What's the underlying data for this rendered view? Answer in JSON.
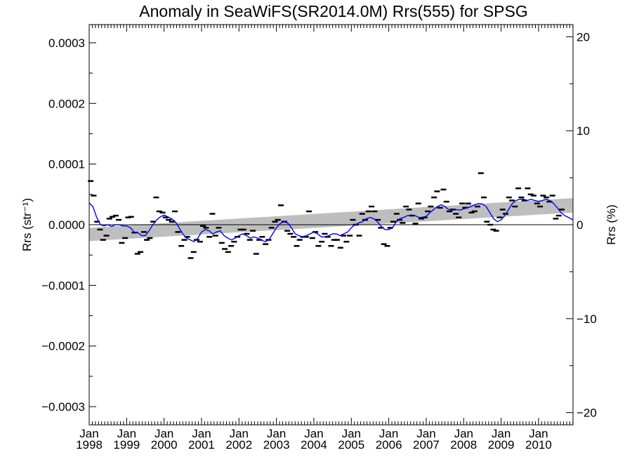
{
  "chart_data": {
    "type": "scatter",
    "title": "Anomaly in SeaWiFS(SR2014.0M) Rrs(555) for SPSG",
    "ylabel_left": "Rrs (str⁻¹)",
    "ylabel_right": "Rrs (%)",
    "xlim": [
      1998.0,
      2010.92
    ],
    "ylim_left": [
      -0.00033,
      0.00033
    ],
    "ylim_right": [
      -21.3,
      21.3
    ],
    "yticks_left": [
      {
        "value": 0.0003,
        "label": "0.0003"
      },
      {
        "value": 0.0002,
        "label": "0.0002"
      },
      {
        "value": 0.0001,
        "label": "0.0001"
      },
      {
        "value": 0.0,
        "label": "0.0000"
      },
      {
        "value": -0.0001,
        "label": "−0.0001"
      },
      {
        "value": -0.0002,
        "label": "−0.0002"
      },
      {
        "value": -0.0003,
        "label": "−0.0003"
      }
    ],
    "yticks_right": [
      {
        "value": 20,
        "label": "20"
      },
      {
        "value": 10,
        "label": "10"
      },
      {
        "value": 0,
        "label": "0"
      },
      {
        "value": -10,
        "label": "−10"
      },
      {
        "value": -20,
        "label": "−20"
      }
    ],
    "xticks": [
      {
        "value": 1998,
        "label1": "Jan",
        "label2": "1998"
      },
      {
        "value": 1999,
        "label1": "Jan",
        "label2": "1999"
      },
      {
        "value": 2000,
        "label1": "Jan",
        "label2": "2000"
      },
      {
        "value": 2001,
        "label1": "Jan",
        "label2": "2001"
      },
      {
        "value": 2002,
        "label1": "Jan",
        "label2": "2002"
      },
      {
        "value": 2003,
        "label1": "Jan",
        "label2": "2003"
      },
      {
        "value": 2004,
        "label1": "Jan",
        "label2": "2004"
      },
      {
        "value": 2005,
        "label1": "Jan",
        "label2": "2005"
      },
      {
        "value": 2006,
        "label1": "Jan",
        "label2": "2006"
      },
      {
        "value": 2007,
        "label1": "Jan",
        "label2": "2007"
      },
      {
        "value": 2008,
        "label1": "Jan",
        "label2": "2008"
      },
      {
        "value": 2009,
        "label1": "Jan",
        "label2": "2009"
      },
      {
        "value": 2010,
        "label1": "Jan",
        "label2": "2010"
      }
    ],
    "monthly_anomaly": [
      [
        1998.04,
        7.2e-05
      ],
      [
        1998.12,
        4.8e-05
      ],
      [
        1998.21,
        5e-06
      ],
      [
        1998.29,
        -8e-06
      ],
      [
        1998.37,
        -2.5e-05
      ],
      [
        1998.46,
        -1.8e-05
      ],
      [
        1998.54,
        1e-05
      ],
      [
        1998.62,
        1.3e-05
      ],
      [
        1998.71,
        1.5e-05
      ],
      [
        1998.79,
        8e-06
      ],
      [
        1998.87,
        -3e-05
      ],
      [
        1998.96,
        -2.2e-05
      ],
      [
        1999.04,
        1.2e-05
      ],
      [
        1999.12,
        1.3e-05
      ],
      [
        1999.21,
        -1.3e-05
      ],
      [
        1999.29,
        -4.8e-05
      ],
      [
        1999.37,
        -4.5e-05
      ],
      [
        1999.46,
        -1.2e-05
      ],
      [
        1999.54,
        -2.5e-05
      ],
      [
        1999.62,
        -2.2e-05
      ],
      [
        1999.71,
        5e-06
      ],
      [
        1999.79,
        4.5e-05
      ],
      [
        1999.87,
        2.2e-05
      ],
      [
        1999.96,
        2e-05
      ],
      [
        2000.04,
        1.2e-05
      ],
      [
        2000.12,
        8e-06
      ],
      [
        2000.21,
        5e-06
      ],
      [
        2000.29,
        2.2e-05
      ],
      [
        2000.37,
        -1.2e-05
      ],
      [
        2000.46,
        -3.5e-05
      ],
      [
        2000.54,
        -2.5e-05
      ],
      [
        2000.62,
        -2e-05
      ],
      [
        2000.71,
        -5.5e-05
      ],
      [
        2000.79,
        -4.5e-05
      ],
      [
        2000.87,
        -2.5e-05
      ],
      [
        2000.96,
        -2.8e-05
      ],
      [
        2001.04,
        -2e-06
      ],
      [
        2001.12,
        -5e-06
      ],
      [
        2001.21,
        -2e-05
      ],
      [
        2001.29,
        1.8e-05
      ],
      [
        2001.37,
        -1.8e-05
      ],
      [
        2001.46,
        -5e-06
      ],
      [
        2001.54,
        -3e-05
      ],
      [
        2001.62,
        -4e-05
      ],
      [
        2001.71,
        -4.5e-05
      ],
      [
        2001.79,
        -3.5e-05
      ],
      [
        2001.87,
        -2.8e-05
      ],
      [
        2001.96,
        -2e-05
      ],
      [
        2002.04,
        -8e-06
      ],
      [
        2002.12,
        -8e-06
      ],
      [
        2002.21,
        -1.5e-05
      ],
      [
        2002.29,
        -2.5e-05
      ],
      [
        2002.37,
        -1e-05
      ],
      [
        2002.46,
        -4.8e-05
      ],
      [
        2002.54,
        -2.5e-05
      ],
      [
        2002.62,
        -2e-05
      ],
      [
        2002.71,
        -3.2e-05
      ],
      [
        2002.79,
        -2.5e-05
      ],
      [
        2002.87,
        -5e-06
      ],
      [
        2002.96,
        5e-06
      ],
      [
        2003.04,
        8e-06
      ],
      [
        2003.12,
        3.2e-05
      ],
      [
        2003.21,
        5e-06
      ],
      [
        2003.29,
        -1e-05
      ],
      [
        2003.37,
        -1.5e-05
      ],
      [
        2003.46,
        -2e-05
      ],
      [
        2003.54,
        -3.5e-05
      ],
      [
        2003.62,
        -2.5e-05
      ],
      [
        2003.71,
        -2e-05
      ],
      [
        2003.79,
        -2e-05
      ],
      [
        2003.87,
        2.2e-05
      ],
      [
        2003.96,
        -2.2e-05
      ],
      [
        2004.04,
        -1.2e-05
      ],
      [
        2004.12,
        -3.5e-05
      ],
      [
        2004.21,
        -2.8e-05
      ],
      [
        2004.29,
        -1.5e-05
      ],
      [
        2004.37,
        -2e-05
      ],
      [
        2004.46,
        -3.5e-05
      ],
      [
        2004.54,
        -2.5e-05
      ],
      [
        2004.62,
        -2.5e-05
      ],
      [
        2004.71,
        -3.8e-05
      ],
      [
        2004.79,
        -1.8e-05
      ],
      [
        2004.87,
        -2.8e-05
      ],
      [
        2004.96,
        -1.8e-05
      ],
      [
        2005.04,
        8e-06
      ],
      [
        2005.12,
        0.0
      ],
      [
        2005.21,
        -1.8e-05
      ],
      [
        2005.29,
        1.8e-05
      ],
      [
        2005.37,
        8e-06
      ],
      [
        2005.46,
        2.2e-05
      ],
      [
        2005.54,
        3e-05
      ],
      [
        2005.62,
        2.2e-05
      ],
      [
        2005.71,
        8e-06
      ],
      [
        2005.79,
        -5e-06
      ],
      [
        2005.87,
        -3.2e-05
      ],
      [
        2005.96,
        -3.5e-05
      ],
      [
        2006.04,
        -5e-06
      ],
      [
        2006.12,
        5e-06
      ],
      [
        2006.21,
        1.8e-05
      ],
      [
        2006.29,
        8e-06
      ],
      [
        2006.37,
        3e-06
      ],
      [
        2006.46,
        3e-05
      ],
      [
        2006.54,
        2.5e-05
      ],
      [
        2006.62,
        1.5e-05
      ],
      [
        2006.71,
        2e-06
      ],
      [
        2006.79,
        3.5e-05
      ],
      [
        2006.87,
        1e-05
      ],
      [
        2006.96,
        1.2e-05
      ],
      [
        2007.04,
        2.2e-05
      ],
      [
        2007.12,
        3e-05
      ],
      [
        2007.21,
        4.5e-05
      ],
      [
        2007.29,
        5.5e-05
      ],
      [
        2007.37,
        2.8e-05
      ],
      [
        2007.46,
        5.8e-05
      ],
      [
        2007.54,
        3.8e-05
      ],
      [
        2007.62,
        2.2e-05
      ],
      [
        2007.71,
        2.5e-05
      ],
      [
        2007.79,
        1.8e-05
      ],
      [
        2007.87,
        1.2e-05
      ],
      [
        2007.96,
        3.5e-05
      ],
      [
        2008.04,
        2.8e-05
      ],
      [
        2008.12,
        3.5e-05
      ],
      [
        2008.21,
        2e-05
      ],
      [
        2008.29,
        2.2e-05
      ],
      [
        2008.37,
        3e-05
      ],
      [
        2008.46,
        8.5e-05
      ],
      [
        2008.54,
        4.5e-05
      ],
      [
        2008.62,
        5e-06
      ],
      [
        2008.71,
        0.0
      ],
      [
        2008.79,
        -8e-06
      ],
      [
        2008.87,
        -1e-05
      ],
      [
        2008.96,
        1.2e-05
      ],
      [
        2009.04,
        2.5e-05
      ],
      [
        2009.12,
        1.8e-05
      ],
      [
        2009.21,
        4.5e-05
      ],
      [
        2009.29,
        4e-05
      ],
      [
        2009.37,
        3e-05
      ],
      [
        2009.46,
        6e-05
      ],
      [
        2009.54,
        4.5e-05
      ],
      [
        2009.62,
        4e-05
      ],
      [
        2009.71,
        6e-05
      ],
      [
        2009.79,
        5e-05
      ],
      [
        2009.87,
        4.8e-05
      ],
      [
        2009.96,
        3.5e-05
      ],
      [
        2010.04,
        3e-05
      ],
      [
        2010.12,
        4.8e-05
      ],
      [
        2010.21,
        4.5e-05
      ],
      [
        2010.29,
        3.8e-05
      ],
      [
        2010.37,
        4.8e-05
      ],
      [
        2010.46,
        1e-05
      ],
      [
        2010.54,
        1.5e-05
      ],
      [
        2010.62,
        2.5e-05
      ]
    ],
    "smoothed_line": [
      [
        1998.0,
        3.6e-05
      ],
      [
        1998.1,
        3e-05
      ],
      [
        1998.2,
        1.2e-05
      ],
      [
        1998.3,
        0.0
      ],
      [
        1998.4,
        -2e-06
      ],
      [
        1998.5,
        0.0
      ],
      [
        1998.6,
        -3e-06
      ],
      [
        1998.7,
        0.0
      ],
      [
        1998.8,
        0.0
      ],
      [
        1998.9,
        -2e-06
      ],
      [
        1999.0,
        -2e-06
      ],
      [
        1999.1,
        -5e-06
      ],
      [
        1999.2,
        -1.2e-05
      ],
      [
        1999.3,
        -1.3e-05
      ],
      [
        1999.4,
        -1.8e-05
      ],
      [
        1999.5,
        -1.8e-05
      ],
      [
        1999.6,
        -1e-05
      ],
      [
        1999.7,
        0.0
      ],
      [
        1999.8,
        8e-06
      ],
      [
        1999.9,
        1.3e-05
      ],
      [
        2000.0,
        1.6e-05
      ],
      [
        2000.1,
        1.3e-05
      ],
      [
        2000.2,
        1e-05
      ],
      [
        2000.3,
        5e-06
      ],
      [
        2000.4,
        -5e-06
      ],
      [
        2000.5,
        -1.5e-05
      ],
      [
        2000.6,
        -2.2e-05
      ],
      [
        2000.7,
        -2.5e-05
      ],
      [
        2000.8,
        -2.8e-05
      ],
      [
        2000.9,
        -2.2e-05
      ],
      [
        2001.0,
        -1.2e-05
      ],
      [
        2001.1,
        -8e-06
      ],
      [
        2001.2,
        -1e-05
      ],
      [
        2001.3,
        -1.5e-05
      ],
      [
        2001.4,
        -1.2e-05
      ],
      [
        2001.5,
        -1e-05
      ],
      [
        2001.6,
        -1.8e-05
      ],
      [
        2001.7,
        -2.2e-05
      ],
      [
        2001.8,
        -2.5e-05
      ],
      [
        2001.9,
        -2.2e-05
      ],
      [
        2002.0,
        -1.8e-05
      ],
      [
        2002.1,
        -1.5e-05
      ],
      [
        2002.2,
        -1.8e-05
      ],
      [
        2002.3,
        -2.2e-05
      ],
      [
        2002.4,
        -2e-05
      ],
      [
        2002.5,
        -2.2e-05
      ],
      [
        2002.6,
        -2.5e-05
      ],
      [
        2002.7,
        -2.8e-05
      ],
      [
        2002.8,
        -2.5e-05
      ],
      [
        2002.9,
        -1.5e-05
      ],
      [
        2003.0,
        -5e-06
      ],
      [
        2003.1,
        2e-06
      ],
      [
        2003.2,
        5e-06
      ],
      [
        2003.3,
        3e-06
      ],
      [
        2003.4,
        -5e-06
      ],
      [
        2003.5,
        -1.5e-05
      ],
      [
        2003.6,
        -1.8e-05
      ],
      [
        2003.7,
        -2e-05
      ],
      [
        2003.8,
        -1.8e-05
      ],
      [
        2003.9,
        -1.5e-05
      ],
      [
        2004.0,
        -1.2e-05
      ],
      [
        2004.1,
        -1.5e-05
      ],
      [
        2004.2,
        -2e-05
      ],
      [
        2004.3,
        -2e-05
      ],
      [
        2004.4,
        -1.8e-05
      ],
      [
        2004.5,
        -1.5e-05
      ],
      [
        2004.6,
        -1.5e-05
      ],
      [
        2004.7,
        -1.8e-05
      ],
      [
        2004.8,
        -1.5e-05
      ],
      [
        2004.9,
        -1.2e-05
      ],
      [
        2005.0,
        -5e-06
      ],
      [
        2005.1,
        0.0
      ],
      [
        2005.2,
        3e-06
      ],
      [
        2005.3,
        5e-06
      ],
      [
        2005.4,
        1e-05
      ],
      [
        2005.5,
        1.2e-05
      ],
      [
        2005.6,
        1e-05
      ],
      [
        2005.7,
        5e-06
      ],
      [
        2005.8,
        -3e-06
      ],
      [
        2005.9,
        -8e-06
      ],
      [
        2006.0,
        -8e-06
      ],
      [
        2006.1,
        -5e-06
      ],
      [
        2006.2,
        5e-06
      ],
      [
        2006.3,
        1e-05
      ],
      [
        2006.4,
        1.2e-05
      ],
      [
        2006.5,
        1.5e-05
      ],
      [
        2006.6,
        1.6e-05
      ],
      [
        2006.7,
        1.5e-05
      ],
      [
        2006.8,
        1.2e-05
      ],
      [
        2006.9,
        1.2e-05
      ],
      [
        2007.0,
        1.4e-05
      ],
      [
        2007.1,
        2e-05
      ],
      [
        2007.2,
        2.5e-05
      ],
      [
        2007.3,
        3e-05
      ],
      [
        2007.4,
        3.3e-05
      ],
      [
        2007.5,
        3e-05
      ],
      [
        2007.6,
        2.5e-05
      ],
      [
        2007.7,
        2.4e-05
      ],
      [
        2007.8,
        2.5e-05
      ],
      [
        2007.9,
        2.4e-05
      ],
      [
        2008.0,
        2.6e-05
      ],
      [
        2008.1,
        2.8e-05
      ],
      [
        2008.2,
        3e-05
      ],
      [
        2008.3,
        3.3e-05
      ],
      [
        2008.4,
        3.5e-05
      ],
      [
        2008.5,
        3.4e-05
      ],
      [
        2008.6,
        3e-05
      ],
      [
        2008.7,
        2e-05
      ],
      [
        2008.8,
        1e-05
      ],
      [
        2008.9,
        5e-06
      ],
      [
        2009.0,
        8e-06
      ],
      [
        2009.1,
        1.5e-05
      ],
      [
        2009.2,
        2.5e-05
      ],
      [
        2009.3,
        3.5e-05
      ],
      [
        2009.4,
        4e-05
      ],
      [
        2009.5,
        4.2e-05
      ],
      [
        2009.6,
        4.2e-05
      ],
      [
        2009.7,
        4e-05
      ],
      [
        2009.8,
        4.2e-05
      ],
      [
        2009.9,
        4e-05
      ],
      [
        2010.0,
        3.8e-05
      ],
      [
        2010.1,
        4e-05
      ],
      [
        2010.2,
        4.2e-05
      ],
      [
        2010.3,
        4e-05
      ],
      [
        2010.4,
        3.5e-05
      ],
      [
        2010.5,
        2.8e-05
      ],
      [
        2010.6,
        2e-05
      ],
      [
        2010.7,
        1.5e-05
      ],
      [
        2010.8,
        1.2e-05
      ],
      [
        2010.92,
        8e-06
      ]
    ],
    "trend_band": {
      "x": [
        1998.0,
        2010.92
      ],
      "lower": [
        -2.7e-05,
        2e-05
      ],
      "upper": [
        -5e-06,
        4.4e-05
      ]
    },
    "colors": {
      "smoothed_line": "#0000ff",
      "band": "#bebebe",
      "markers": "#000000",
      "zero_line": "#000000"
    },
    "grid": false,
    "legend": "none"
  }
}
